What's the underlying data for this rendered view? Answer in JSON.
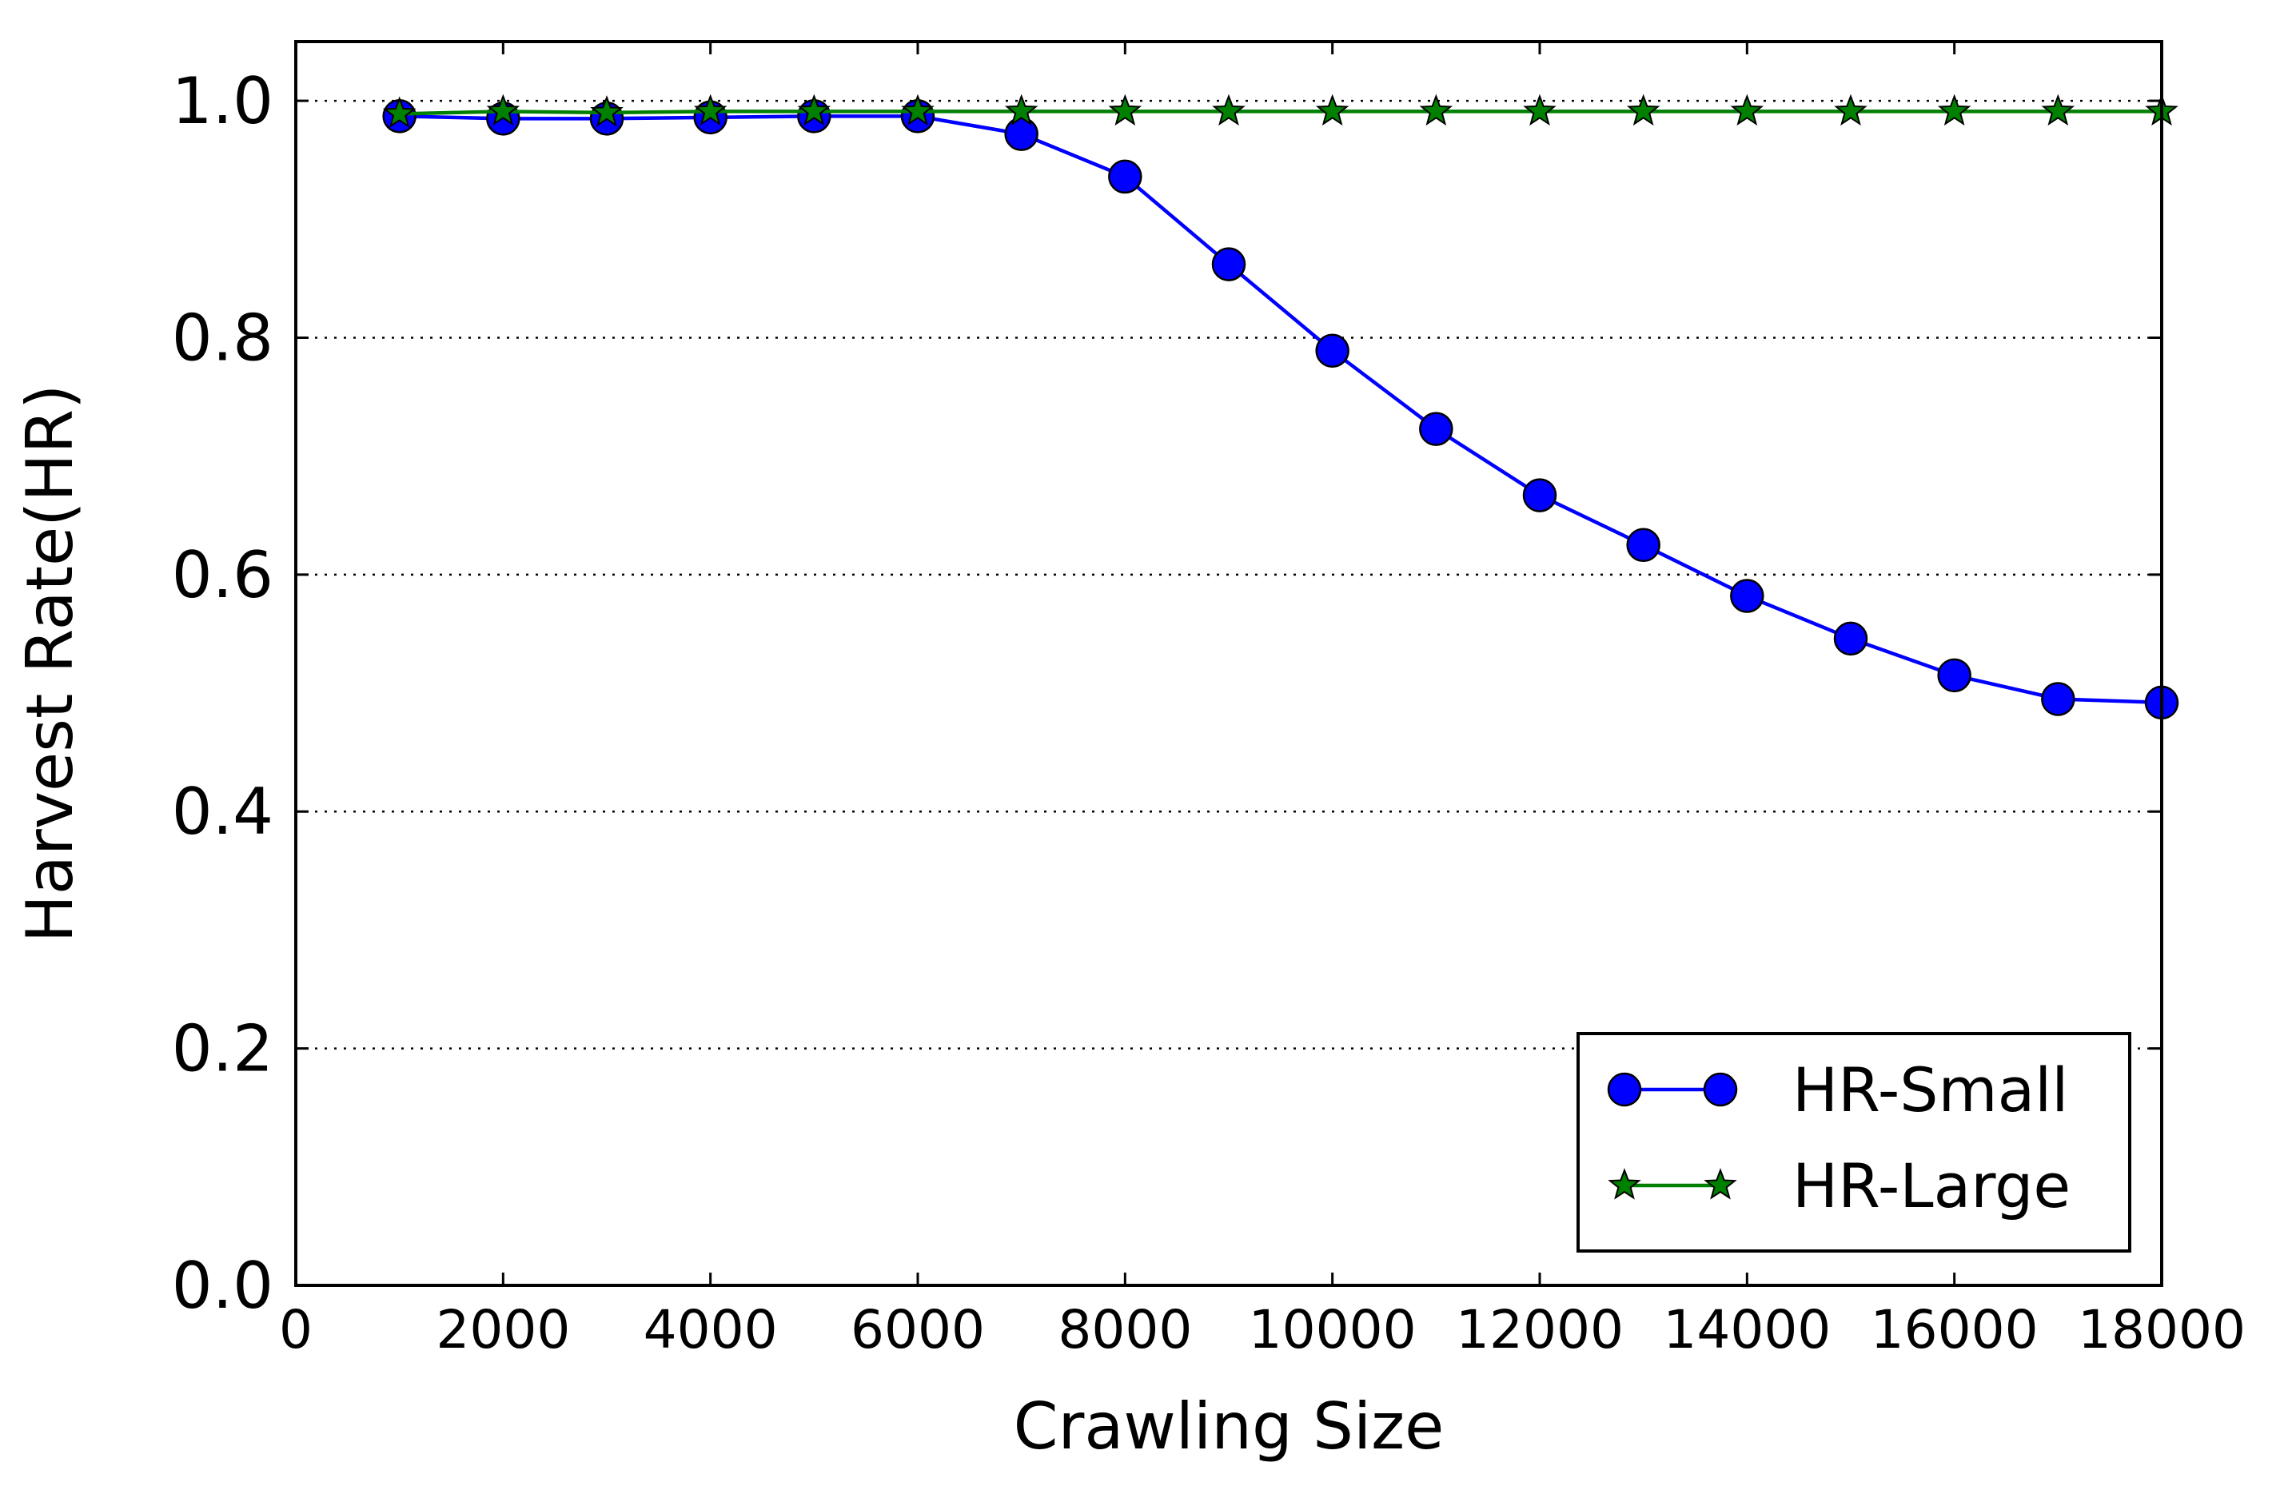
{
  "chart_data": {
    "type": "line",
    "title": "",
    "xlabel": "Crawling Size",
    "ylabel": "Harvest Rate(HR)",
    "xlim": [
      0,
      18000
    ],
    "ylim": [
      0.0,
      1.05
    ],
    "xticks": [
      0,
      2000,
      4000,
      6000,
      8000,
      10000,
      12000,
      14000,
      16000,
      18000
    ],
    "xtick_labels": [
      "0",
      "2000",
      "4000",
      "6000",
      "8000",
      "10000",
      "12000",
      "14000",
      "16000",
      "18000"
    ],
    "yticks": [
      0.0,
      0.2,
      0.4,
      0.6,
      0.8,
      1.0
    ],
    "ytick_labels": [
      "0.0",
      "0.2",
      "0.4",
      "0.6",
      "0.8",
      "1.0"
    ],
    "grid": "horizontal dotted",
    "legend": {
      "placement": "lower-right"
    },
    "series": [
      {
        "name": "HR-Small",
        "color": "#0000ff",
        "marker": "circle",
        "x": [
          1000,
          2000,
          3000,
          4000,
          5000,
          6000,
          7000,
          8000,
          9000,
          10000,
          11000,
          12000,
          13000,
          14000,
          15000,
          16000,
          17000,
          18000
        ],
        "values": [
          0.987,
          0.985,
          0.985,
          0.986,
          0.987,
          0.987,
          0.972,
          0.936,
          0.862,
          0.789,
          0.723,
          0.667,
          0.625,
          0.582,
          0.546,
          0.515,
          0.495,
          0.492
        ]
      },
      {
        "name": "HR-Large",
        "color": "#008000",
        "marker": "star",
        "x": [
          1000,
          2000,
          3000,
          4000,
          5000,
          6000,
          7000,
          8000,
          9000,
          10000,
          11000,
          12000,
          13000,
          14000,
          15000,
          16000,
          17000,
          18000
        ],
        "values": [
          0.989,
          0.991,
          0.99,
          0.991,
          0.991,
          0.991,
          0.991,
          0.991,
          0.991,
          0.991,
          0.991,
          0.991,
          0.991,
          0.991,
          0.991,
          0.991,
          0.991,
          0.991
        ]
      }
    ]
  }
}
